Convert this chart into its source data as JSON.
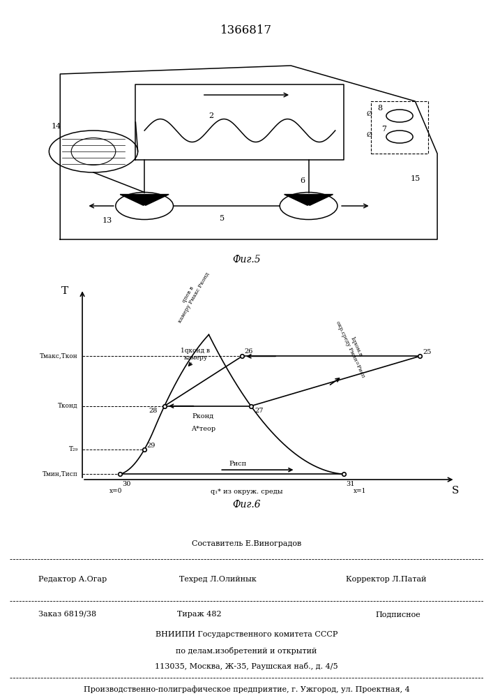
{
  "patent_number": "1366817",
  "bg_color": "#ffffff",
  "line_color": "#000000",
  "footer": {
    "sestavitel": "Составитель Е.Виноградов",
    "redaktor": "Редактор А.Огар",
    "tehred": "Техред Л.Олийнык",
    "korrektor": "Корректор Л.Патай",
    "zakaz": "Заказ 6819/38",
    "tirazh": "Тираж 482",
    "podpisnoe": "Подписное",
    "vniip1": "ВНИИПИ Государственного комитета СССР",
    "vniip2": "по делам.изобретений и открытий",
    "address": "113035, Москва, Ж-35, Раушская наб., д. 4/5",
    "ppp": "Производственно-полиграфическое предприятие, г. Ужгород, ул. Проектная, 4"
  }
}
